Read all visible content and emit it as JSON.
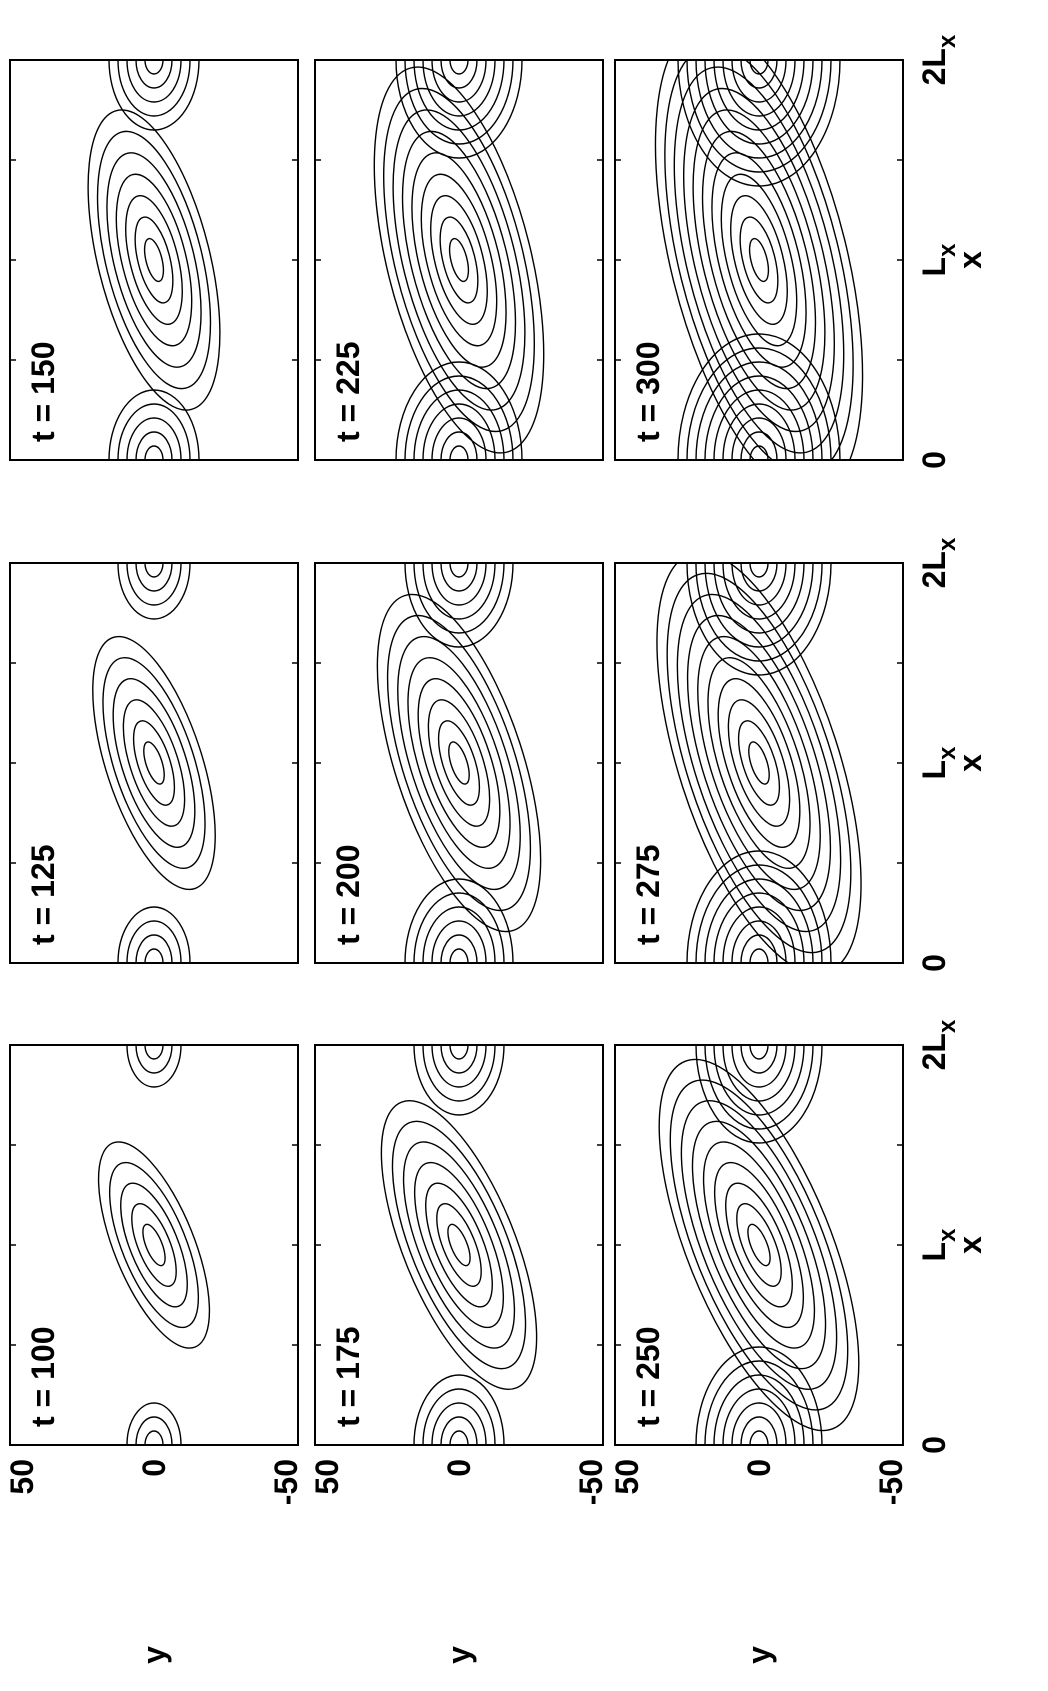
{
  "figure": {
    "panels": [
      {
        "label": "t = 100"
      },
      {
        "label": "t = 125"
      },
      {
        "label": "t = 150"
      },
      {
        "label": "t = 175"
      },
      {
        "label": "t = 200"
      },
      {
        "label": "t = 225"
      },
      {
        "label": "t = 250"
      },
      {
        "label": "t = 275"
      },
      {
        "label": "t = 300"
      }
    ],
    "x_axis": {
      "title": "x",
      "ticks": [
        {
          "text": "0"
        },
        {
          "text": "L",
          "subscript": "x"
        },
        {
          "text": "2L",
          "subscript": "x"
        }
      ]
    },
    "y_axis": {
      "title": "y",
      "ticks": [
        "50",
        "0",
        "-50"
      ]
    }
  }
}
